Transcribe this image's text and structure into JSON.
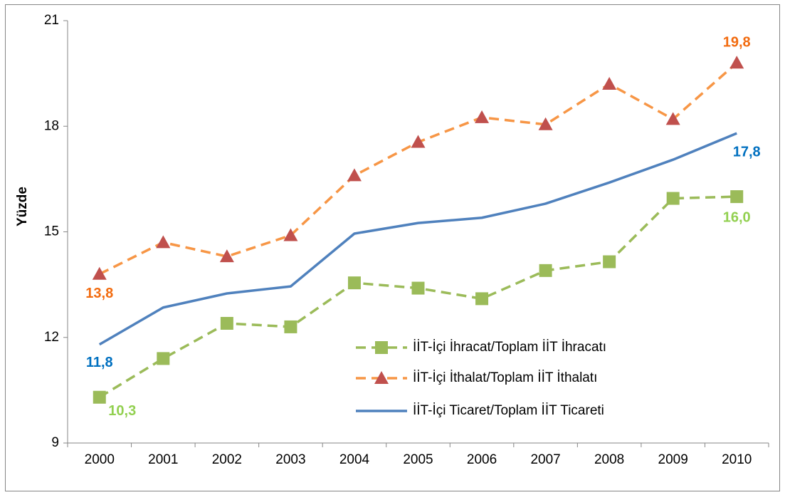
{
  "chart_data": {
    "type": "line",
    "y_label": "Yüzde",
    "categories": [
      "2000",
      "2001",
      "2002",
      "2003",
      "2004",
      "2005",
      "2006",
      "2007",
      "2008",
      "2009",
      "2010"
    ],
    "ylim": [
      9,
      21
    ],
    "yticks": [
      9,
      12,
      15,
      18,
      21
    ],
    "legend": "lower right",
    "series": [
      {
        "name": "İİT-İçi İhracat/Toplam İİT İhracatı",
        "color": "#9bbb59",
        "marker": "square",
        "marker_color": "#9bbb59",
        "dash": true,
        "label_color": "#92d050",
        "values": [
          10.3,
          11.4,
          12.4,
          12.3,
          13.55,
          13.4,
          13.1,
          13.9,
          14.15,
          15.95,
          16.0
        ],
        "value_labels": [
          "10,3",
          null,
          null,
          null,
          null,
          null,
          null,
          null,
          null,
          null,
          "16,0"
        ]
      },
      {
        "name": "İİT-İçi İthalat/Toplam İİT İthalatı",
        "color": "#f79646",
        "marker": "triangle",
        "marker_color": "#c0504d",
        "dash": true,
        "label_color": "#f26b0f",
        "values": [
          13.8,
          14.7,
          14.3,
          14.9,
          16.6,
          17.55,
          18.25,
          18.05,
          19.2,
          18.2,
          19.8
        ],
        "value_labels": [
          "13,8",
          null,
          null,
          null,
          null,
          null,
          null,
          null,
          null,
          null,
          "19,8"
        ]
      },
      {
        "name": "İİT-İçi Ticaret/Toplam İİT Ticareti",
        "color": "#4f81bd",
        "marker": "none",
        "dash": false,
        "label_color": "#0070c0",
        "values": [
          11.8,
          12.85,
          13.25,
          13.45,
          14.95,
          15.25,
          15.4,
          15.8,
          16.4,
          17.05,
          17.8
        ],
        "value_labels": [
          "11,8",
          null,
          null,
          null,
          null,
          null,
          null,
          null,
          null,
          null,
          "17,8"
        ]
      }
    ]
  }
}
